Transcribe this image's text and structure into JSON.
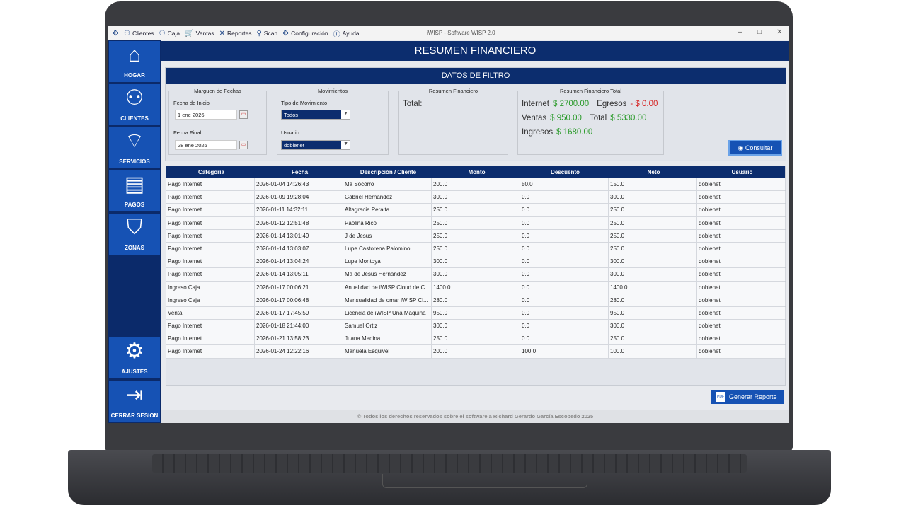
{
  "menu": [
    {
      "icon": "⚇",
      "label": "Clientes"
    },
    {
      "icon": "⚇",
      "label": "Caja"
    },
    {
      "icon": "🛒",
      "label": "Ventas"
    },
    {
      "icon": "✕",
      "label": "Reportes"
    },
    {
      "icon": "⚲",
      "label": "Scan"
    },
    {
      "icon": "⚙",
      "label": "Configuración"
    },
    {
      "icon": "ⓘ",
      "label": "Ayuda"
    }
  ],
  "app_title": "iWISP - Software WISP 2.0",
  "sidebar": [
    {
      "label": "HOGAR"
    },
    {
      "label": "CLIENTES"
    },
    {
      "label": "SERVICIOS"
    },
    {
      "label": "PAGOS"
    },
    {
      "label": "ZONAS"
    },
    {
      "label": "AJUSTES"
    },
    {
      "label": "CERRAR SESION"
    }
  ],
  "header": "RESUMEN FINANCIERO",
  "filter": {
    "title": "DATOS DE FILTRO",
    "fechas": {
      "title": "Marguen de Fechas",
      "inicio_label": "Fecha de Inicio",
      "inicio": "1 ene 2026",
      "final_label": "Fecha Final",
      "final": "28 ene 2026"
    },
    "movimientos": {
      "title": "Movimientos",
      "tipo_label": "Tipo de Movimiento",
      "tipo": "Todos",
      "usuario_label": "Usuario",
      "usuario": "doblenet"
    },
    "resumen": {
      "title": "Resumen Financiero",
      "total_label": "Total:"
    },
    "total": {
      "title": "Resumen Financiero Total",
      "internet_label": "Internet",
      "internet": "$ 2700.00",
      "egresos_label": "Egresos",
      "egresos": "- $ 0.00",
      "ventas_label": "Ventas",
      "ventas": "$ 950.00",
      "total_label": "Total",
      "total": "$ 5330.00",
      "ingresos_label": "Ingresos",
      "ingresos": "$ 1680.00"
    },
    "consultar": "Consultar"
  },
  "table": {
    "columns": [
      "Categoría",
      "Fecha",
      "Descripción / Cliente",
      "Monto",
      "Descuento",
      "Neto",
      "Usuario"
    ],
    "rows": [
      [
        "Pago Internet",
        "2026-01-04 14:26:43",
        "Ma Socorro",
        "200.0",
        "50.0",
        "150.0",
        "doblenet"
      ],
      [
        "Pago Internet",
        "2026-01-09 19:28:04",
        "Gabriel Hernandez",
        "300.0",
        "0.0",
        "300.0",
        "doblenet"
      ],
      [
        "Pago Internet",
        "2026-01-11 14:32:11",
        "Altagracia Peralta",
        "250.0",
        "0.0",
        "250.0",
        "doblenet"
      ],
      [
        "Pago Internet",
        "2026-01-12 12:51:48",
        "Paolina Rico",
        "250.0",
        "0.0",
        "250.0",
        "doblenet"
      ],
      [
        "Pago Internet",
        "2026-01-14 13:01:49",
        "J de Jesus",
        "250.0",
        "0.0",
        "250.0",
        "doblenet"
      ],
      [
        "Pago Internet",
        "2026-01-14 13:03:07",
        "Lupe Castorena Palomino",
        "250.0",
        "0.0",
        "250.0",
        "doblenet"
      ],
      [
        "Pago Internet",
        "2026-01-14 13:04:24",
        "Lupe Montoya",
        "300.0",
        "0.0",
        "300.0",
        "doblenet"
      ],
      [
        "Pago Internet",
        "2026-01-14 13:05:11",
        "Ma de Jesus Hernandez",
        "300.0",
        "0.0",
        "300.0",
        "doblenet"
      ],
      [
        "Ingreso Caja",
        "2026-01-17 00:06:21",
        "Anualidad de iWISP Cloud de C...",
        "1400.0",
        "0.0",
        "1400.0",
        "doblenet"
      ],
      [
        "Ingreso Caja",
        "2026-01-17 00:06:48",
        "Mensualidad de omar iWISP Cl...",
        "280.0",
        "0.0",
        "280.0",
        "doblenet"
      ],
      [
        "Venta",
        "2026-01-17 17:45:59",
        "Licencia de iWISP Una Maquina",
        "950.0",
        "0.0",
        "950.0",
        "doblenet"
      ],
      [
        "Pago Internet",
        "2026-01-18 21:44:00",
        "Samuel Ortiz",
        "300.0",
        "0.0",
        "300.0",
        "doblenet"
      ],
      [
        "Pago Internet",
        "2026-01-21 13:58:23",
        "Juana Medina",
        "250.0",
        "0.0",
        "250.0",
        "doblenet"
      ],
      [
        "Pago Internet",
        "2026-01-24 12:22:16",
        "Manuela Esquivel",
        "200.0",
        "100.0",
        "100.0",
        "doblenet"
      ]
    ]
  },
  "generar": "Generar Reporte",
  "pdf_icon": "PDF",
  "footer": "© Todos los derechos reservados sobre el software a Richard Gerardo García Escobedo 2025"
}
